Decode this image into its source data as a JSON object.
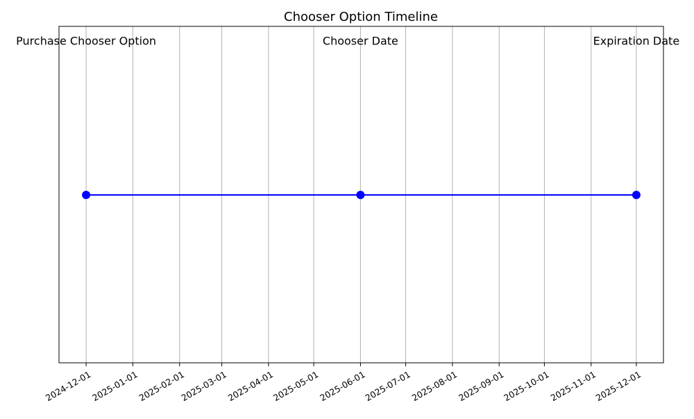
{
  "chart_data": {
    "type": "line",
    "title": "Chooser Option Timeline",
    "xlabel": "",
    "ylabel": "",
    "x_axis": "date",
    "xlim": [
      "2024-11-13",
      "2025-12-19"
    ],
    "grid": {
      "x": true,
      "y": false
    },
    "y_ticks_visible": false,
    "line_color": "#0000ff",
    "marker_color": "#0000ff",
    "grid_color": "#b0b0b0",
    "ticks": [
      "2024-12-01",
      "2025-01-01",
      "2025-02-01",
      "2025-03-01",
      "2025-04-01",
      "2025-05-01",
      "2025-06-01",
      "2025-07-01",
      "2025-08-01",
      "2025-09-01",
      "2025-10-01",
      "2025-11-01",
      "2025-12-01"
    ],
    "events": [
      {
        "date": "2024-12-01",
        "label": "Purchase Chooser Option"
      },
      {
        "date": "2025-06-01",
        "label": "Chooser Date"
      },
      {
        "date": "2025-12-01",
        "label": "Expiration Date"
      }
    ]
  }
}
